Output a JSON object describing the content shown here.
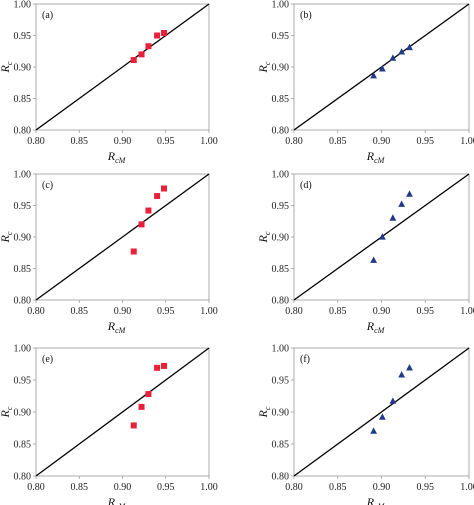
{
  "chart_data": [
    {
      "panel": "(a)",
      "type": "scatter",
      "marker": "square",
      "color": "#e8203a",
      "xlabel": {
        "main": "R",
        "sub": "cM"
      },
      "ylabel": {
        "main": "R",
        "sub": "c"
      },
      "xlim": [
        0.8,
        1.0
      ],
      "ylim": [
        0.8,
        1.0
      ],
      "xticks": [
        "0.80",
        "0.85",
        "0.90",
        "0.95",
        "1.00"
      ],
      "yticks": [
        "0.80",
        "0.85",
        "0.90",
        "0.95",
        "1.00"
      ],
      "reference_line": "y = x",
      "x": [
        0.913,
        0.922,
        0.93,
        0.94,
        0.948
      ],
      "y": [
        0.911,
        0.92,
        0.933,
        0.95,
        0.954
      ]
    },
    {
      "panel": "(b)",
      "type": "scatter",
      "marker": "triangle",
      "color": "#1f3a8a",
      "xlabel": {
        "main": "R",
        "sub": "cM"
      },
      "ylabel": {
        "main": "R",
        "sub": "c"
      },
      "xlim": [
        0.8,
        1.0
      ],
      "ylim": [
        0.8,
        1.0
      ],
      "xticks": [
        "0.80",
        "0.85",
        "0.90",
        "0.95",
        "1.00"
      ],
      "yticks": [
        "0.80",
        "0.85",
        "0.90",
        "0.95",
        "1.00"
      ],
      "reference_line": "y = x",
      "x": [
        0.891,
        0.901,
        0.913,
        0.923,
        0.932
      ],
      "y": [
        0.886,
        0.897,
        0.914,
        0.924,
        0.931
      ]
    },
    {
      "panel": "(c)",
      "type": "scatter",
      "marker": "square",
      "color": "#e8203a",
      "xlabel": {
        "main": "R",
        "sub": "cM"
      },
      "ylabel": {
        "main": "R",
        "sub": "c"
      },
      "xlim": [
        0.8,
        1.0
      ],
      "ylim": [
        0.8,
        1.0
      ],
      "xticks": [
        "0.80",
        "0.85",
        "0.90",
        "0.95",
        "1.00"
      ],
      "yticks": [
        "0.80",
        "0.85",
        "0.90",
        "0.95",
        "1.00"
      ],
      "reference_line": "y = x",
      "x": [
        0.913,
        0.922,
        0.93,
        0.94,
        0.948
      ],
      "y": [
        0.877,
        0.92,
        0.942,
        0.965,
        0.977
      ]
    },
    {
      "panel": "(d)",
      "type": "scatter",
      "marker": "triangle",
      "color": "#1f3a8a",
      "xlabel": {
        "main": "R",
        "sub": "cM"
      },
      "ylabel": {
        "main": "R",
        "sub": "c"
      },
      "xlim": [
        0.8,
        1.0
      ],
      "ylim": [
        0.8,
        1.0
      ],
      "xticks": [
        "0.80",
        "0.85",
        "0.90",
        "0.95",
        "1.00"
      ],
      "yticks": [
        "0.80",
        "0.85",
        "0.90",
        "0.95",
        "1.00"
      ],
      "reference_line": "y = x",
      "x": [
        0.891,
        0.901,
        0.913,
        0.923,
        0.932
      ],
      "y": [
        0.863,
        0.9,
        0.93,
        0.952,
        0.968
      ]
    },
    {
      "panel": "(e)",
      "type": "scatter",
      "marker": "square",
      "color": "#e8203a",
      "xlabel": {
        "main": "R",
        "sub": "cM"
      },
      "ylabel": {
        "main": "R",
        "sub": "c"
      },
      "xlim": [
        0.8,
        1.0
      ],
      "ylim": [
        0.8,
        1.0
      ],
      "xticks": [
        "0.80",
        "0.85",
        "0.90",
        "0.95",
        "1.00"
      ],
      "yticks": [
        "0.80",
        "0.85",
        "0.90",
        "0.95",
        "1.00"
      ],
      "reference_line": "y = x",
      "x": [
        0.913,
        0.922,
        0.93,
        0.94,
        0.948
      ],
      "y": [
        0.879,
        0.908,
        0.928,
        0.969,
        0.972
      ]
    },
    {
      "panel": "(f)",
      "type": "scatter",
      "marker": "triangle",
      "color": "#1f3a8a",
      "xlabel": {
        "main": "R",
        "sub": "cM"
      },
      "ylabel": {
        "main": "R",
        "sub": "c"
      },
      "xlim": [
        0.8,
        1.0
      ],
      "ylim": [
        0.8,
        1.0
      ],
      "xticks": [
        "0.80",
        "0.85",
        "0.90",
        "0.95",
        "1.00"
      ],
      "yticks": [
        "0.80",
        "0.85",
        "0.90",
        "0.95",
        "1.00"
      ],
      "reference_line": "y = x",
      "x": [
        0.891,
        0.901,
        0.913,
        0.923,
        0.932
      ],
      "y": [
        0.87,
        0.892,
        0.917,
        0.958,
        0.969
      ]
    }
  ]
}
